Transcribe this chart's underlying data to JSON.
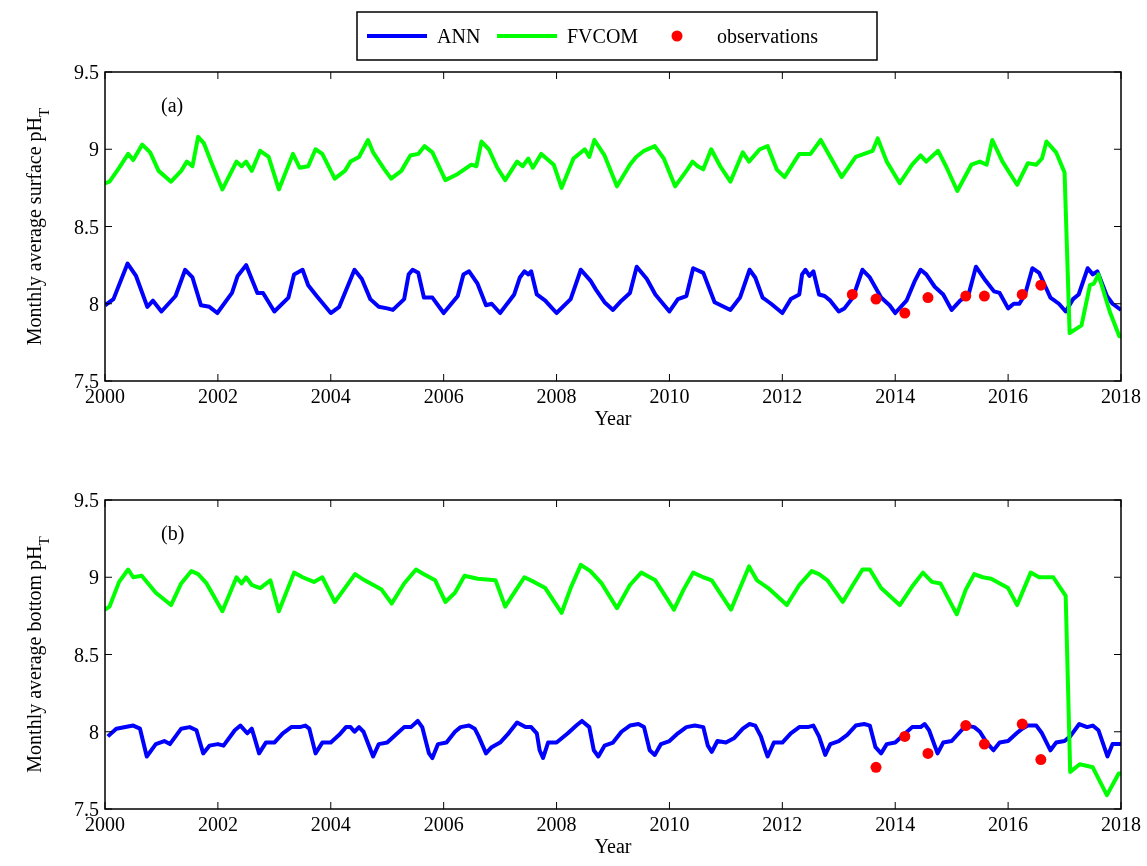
{
  "chart_data": [
    {
      "type": "line",
      "xlabel": "Year",
      "ylabel": "Monthly average surface pH$_{T}$",
      "annotations": [
        "(a)"
      ],
      "xlim": [
        2000,
        2018
      ],
      "xticks": [
        2000,
        2002,
        2004,
        2006,
        2008,
        2010,
        2012,
        2014,
        2016,
        2018
      ],
      "ylim": [
        7.5,
        9.5
      ],
      "yticks": [
        7.5,
        8,
        8.5,
        9,
        9.5
      ],
      "grid": false,
      "legend": "top",
      "marker": "none",
      "line_style": "solid",
      "series": [
        {
          "name": "ANN",
          "color": "#0000ff",
          "x": [
            2000.0,
            2000.15,
            2000.4,
            2000.55,
            2000.75,
            2000.85,
            2001.0,
            2001.25,
            2001.42,
            2001.55,
            2001.7,
            2001.85,
            2001.99,
            2002.25,
            2002.35,
            2002.5,
            2002.7,
            2002.8,
            2003.0,
            2003.25,
            2003.35,
            2003.5,
            2003.6,
            2003.75,
            2004.0,
            2004.15,
            2004.42,
            2004.55,
            2004.7,
            2004.85,
            2005.0,
            2005.1,
            2005.3,
            2005.38,
            2005.45,
            2005.55,
            2005.65,
            2005.8,
            2006.0,
            2006.25,
            2006.35,
            2006.45,
            2006.6,
            2006.75,
            2006.85,
            2007.0,
            2007.25,
            2007.35,
            2007.43,
            2007.5,
            2007.55,
            2007.65,
            2007.8,
            2007.9,
            2008.0,
            2008.25,
            2008.43,
            2008.6,
            2008.7,
            2008.85,
            2009.0,
            2009.15,
            2009.3,
            2009.42,
            2009.6,
            2009.75,
            2010.0,
            2010.15,
            2010.3,
            2010.42,
            2010.6,
            2010.8,
            2011.08,
            2011.25,
            2011.42,
            2011.52,
            2011.65,
            2011.8,
            2012.0,
            2012.15,
            2012.3,
            2012.35,
            2012.41,
            2012.48,
            2012.55,
            2012.65,
            2012.75,
            2012.85,
            2013.0,
            2013.1,
            2013.25,
            2013.42,
            2013.55,
            2013.75,
            2013.9,
            2014.0,
            2014.2,
            2014.35,
            2014.45,
            2014.55,
            2014.7,
            2014.85,
            2015.0,
            2015.15,
            2015.3,
            2015.43,
            2015.6,
            2015.75,
            2015.85,
            2016.0,
            2016.1,
            2016.2,
            2016.3,
            2016.43,
            2016.55,
            2016.65,
            2016.75,
            2016.9,
            2017.02,
            2017.15,
            2017.25,
            2017.41,
            2017.5,
            2017.58,
            2017.75,
            2017.85,
            2018.0
          ],
          "values": [
            7.99,
            8.03,
            8.26,
            8.18,
            7.98,
            8.02,
            7.95,
            8.05,
            8.22,
            8.17,
            7.99,
            7.98,
            7.94,
            8.07,
            8.18,
            8.25,
            8.07,
            8.07,
            7.95,
            8.04,
            8.19,
            8.22,
            8.12,
            8.05,
            7.94,
            7.98,
            8.22,
            8.16,
            8.03,
            7.98,
            7.97,
            7.96,
            8.03,
            8.19,
            8.22,
            8.2,
            8.04,
            8.04,
            7.94,
            8.05,
            8.19,
            8.21,
            8.13,
            7.99,
            8.0,
            7.94,
            8.06,
            8.17,
            8.21,
            8.19,
            8.21,
            8.06,
            8.02,
            7.98,
            7.94,
            8.03,
            8.22,
            8.15,
            8.09,
            8.01,
            7.96,
            8.02,
            8.07,
            8.24,
            8.16,
            8.06,
            7.95,
            8.03,
            8.05,
            8.23,
            8.2,
            8.01,
            7.96,
            8.04,
            8.22,
            8.17,
            8.04,
            8.0,
            7.94,
            8.03,
            8.06,
            8.19,
            8.22,
            8.18,
            8.21,
            8.06,
            8.05,
            8.02,
            7.95,
            7.97,
            8.04,
            8.22,
            8.17,
            8.04,
            7.99,
            7.94,
            8.02,
            8.15,
            8.22,
            8.19,
            8.11,
            8.06,
            7.96,
            8.02,
            8.06,
            8.24,
            8.15,
            8.08,
            8.07,
            7.97,
            8.0,
            8.0,
            8.06,
            8.23,
            8.2,
            8.12,
            8.04,
            8.0,
            7.95,
            8.03,
            8.06,
            8.23,
            8.19,
            8.21,
            8.05,
            8.0,
            7.96
          ]
        },
        {
          "name": "FVCOM",
          "color": "#00ff00",
          "x": [
            2000.0,
            2000.08,
            2000.25,
            2000.41,
            2000.5,
            2000.66,
            2000.8,
            2000.95,
            2001.17,
            2001.35,
            2001.45,
            2001.55,
            2001.65,
            2001.75,
            2001.9,
            2002.08,
            2002.33,
            2002.42,
            2002.5,
            2002.6,
            2002.75,
            2002.9,
            2003.08,
            2003.33,
            2003.45,
            2003.6,
            2003.73,
            2003.85,
            2004.07,
            2004.25,
            2004.35,
            2004.5,
            2004.66,
            2004.75,
            2004.95,
            2005.07,
            2005.25,
            2005.41,
            2005.55,
            2005.66,
            2005.8,
            2006.03,
            2006.25,
            2006.49,
            2006.58,
            2006.67,
            2006.8,
            2006.95,
            2007.09,
            2007.3,
            2007.4,
            2007.5,
            2007.58,
            2007.73,
            2007.95,
            2008.09,
            2008.3,
            2008.5,
            2008.58,
            2008.67,
            2008.85,
            2009.07,
            2009.3,
            2009.41,
            2009.55,
            2009.74,
            2009.9,
            2010.1,
            2010.3,
            2010.41,
            2010.5,
            2010.6,
            2010.74,
            2010.9,
            2011.08,
            2011.3,
            2011.41,
            2011.6,
            2011.74,
            2011.9,
            2012.04,
            2012.3,
            2012.5,
            2012.6,
            2012.68,
            2012.85,
            2013.05,
            2013.3,
            2013.45,
            2013.6,
            2013.69,
            2013.85,
            2014.08,
            2014.3,
            2014.45,
            2014.55,
            2014.76,
            2014.9,
            2015.1,
            2015.35,
            2015.5,
            2015.62,
            2015.72,
            2015.9,
            2016.16,
            2016.35,
            2016.5,
            2016.6,
            2016.68,
            2016.85,
            2017.0,
            2017.09,
            2017.3,
            2017.45,
            2017.52,
            2017.6,
            2017.8,
            2017.97,
            2018.0
          ],
          "values": [
            8.78,
            8.79,
            8.88,
            8.97,
            8.93,
            9.03,
            8.98,
            8.86,
            8.79,
            8.86,
            8.92,
            8.89,
            9.08,
            9.04,
            8.9,
            8.74,
            8.92,
            8.89,
            8.92,
            8.86,
            8.99,
            8.95,
            8.74,
            8.97,
            8.88,
            8.89,
            9.0,
            8.97,
            8.81,
            8.86,
            8.92,
            8.95,
            9.06,
            8.98,
            8.87,
            8.81,
            8.86,
            8.96,
            8.97,
            9.02,
            8.98,
            8.8,
            8.84,
            8.9,
            8.89,
            9.05,
            9.0,
            8.88,
            8.8,
            8.92,
            8.89,
            8.94,
            8.88,
            8.97,
            8.9,
            8.75,
            8.94,
            9.0,
            8.95,
            9.06,
            8.96,
            8.76,
            8.9,
            8.95,
            8.99,
            9.02,
            8.94,
            8.76,
            8.86,
            8.92,
            8.89,
            8.87,
            9.0,
            8.89,
            8.79,
            8.98,
            8.92,
            9.0,
            9.02,
            8.87,
            8.82,
            8.97,
            8.97,
            9.02,
            9.06,
            8.95,
            8.82,
            8.95,
            8.97,
            8.99,
            9.07,
            8.92,
            8.78,
            8.9,
            8.96,
            8.92,
            8.99,
            8.89,
            8.73,
            8.9,
            8.92,
            8.9,
            9.06,
            8.92,
            8.77,
            8.91,
            8.9,
            8.94,
            9.05,
            8.98,
            8.85,
            7.81,
            7.86,
            8.12,
            8.13,
            8.19,
            7.95,
            7.79,
            7.79
          ]
        },
        {
          "name": "observations",
          "type": "scatter",
          "color": "#ff0000",
          "marker": "circle",
          "x": [
            2013.24,
            2013.66,
            2014.17,
            2014.58,
            2015.25,
            2015.58,
            2016.25,
            2016.58
          ],
          "values": [
            8.06,
            8.03,
            7.94,
            8.04,
            8.05,
            8.05,
            8.06,
            8.12
          ]
        }
      ]
    },
    {
      "type": "line",
      "xlabel": "Year",
      "ylabel": "Monthly average bottom pH$_{T}$",
      "annotations": [
        "(b)"
      ],
      "xlim": [
        2000,
        2018
      ],
      "xticks": [
        2000,
        2002,
        2004,
        2006,
        2008,
        2010,
        2012,
        2014,
        2016,
        2018
      ],
      "ylim": [
        7.5,
        9.5
      ],
      "yticks": [
        7.5,
        8,
        8.5,
        9,
        9.5
      ],
      "grid": false,
      "marker": "none",
      "line_style": "solid",
      "series": [
        {
          "color": "#0000ff",
          "x": [
            2000.05,
            2000.2,
            2000.5,
            2000.62,
            2000.74,
            2000.9,
            2001.05,
            2001.15,
            2001.35,
            2001.5,
            2001.62,
            2001.74,
            2001.85,
            2002.0,
            2002.1,
            2002.3,
            2002.4,
            2002.52,
            2002.6,
            2002.65,
            2002.73,
            2002.85,
            2003.0,
            2003.15,
            2003.3,
            2003.45,
            2003.55,
            2003.62,
            2003.73,
            2003.85,
            2004.0,
            2004.15,
            2004.27,
            2004.35,
            2004.42,
            2004.5,
            2004.58,
            2004.75,
            2004.85,
            2005.0,
            2005.15,
            2005.3,
            2005.42,
            2005.54,
            2005.62,
            2005.74,
            2005.8,
            2005.9,
            2006.05,
            2006.2,
            2006.3,
            2006.45,
            2006.55,
            2006.62,
            2006.75,
            2006.85,
            2007.0,
            2007.15,
            2007.3,
            2007.45,
            2007.55,
            2007.65,
            2007.7,
            2007.76,
            2007.85,
            2008.0,
            2008.2,
            2008.35,
            2008.45,
            2008.58,
            2008.66,
            2008.74,
            2008.85,
            2009.0,
            2009.15,
            2009.3,
            2009.45,
            2009.55,
            2009.65,
            2009.74,
            2009.85,
            2010.0,
            2010.15,
            2010.3,
            2010.45,
            2010.6,
            2010.68,
            2010.75,
            2010.85,
            2011.0,
            2011.15,
            2011.3,
            2011.42,
            2011.52,
            2011.62,
            2011.7,
            2011.74,
            2011.85,
            2012.0,
            2012.15,
            2012.3,
            2012.45,
            2012.55,
            2012.65,
            2012.76,
            2012.85,
            2013.0,
            2013.15,
            2013.3,
            2013.45,
            2013.55,
            2013.65,
            2013.75,
            2013.85,
            2014.0,
            2014.15,
            2014.3,
            2014.45,
            2014.52,
            2014.6,
            2014.75,
            2014.85,
            2015.0,
            2015.15,
            2015.25,
            2015.4,
            2015.5,
            2015.62,
            2015.74,
            2015.85,
            2016.0,
            2016.15,
            2016.25,
            2016.35,
            2016.5,
            2016.6,
            2016.75,
            2016.85,
            2017.0,
            2017.1,
            2017.26,
            2017.4,
            2017.5,
            2017.6,
            2017.76,
            2017.85,
            2018.0
          ],
          "values": [
            7.97,
            8.02,
            8.04,
            8.02,
            7.84,
            7.92,
            7.94,
            7.92,
            8.02,
            8.03,
            8.01,
            7.86,
            7.91,
            7.92,
            7.91,
            8.01,
            8.04,
            7.99,
            8.02,
            7.96,
            7.86,
            7.93,
            7.93,
            7.99,
            8.03,
            8.03,
            8.04,
            8.02,
            7.86,
            7.93,
            7.93,
            7.98,
            8.03,
            8.03,
            8.0,
            8.03,
            8.0,
            7.84,
            7.92,
            7.93,
            7.98,
            8.03,
            8.03,
            8.07,
            8.03,
            7.86,
            7.83,
            7.92,
            7.93,
            8.0,
            8.03,
            8.04,
            8.02,
            7.97,
            7.86,
            7.9,
            7.93,
            7.99,
            8.06,
            8.03,
            8.03,
            7.99,
            7.88,
            7.83,
            7.93,
            7.93,
            7.99,
            8.04,
            8.07,
            8.03,
            7.88,
            7.84,
            7.91,
            7.93,
            8.0,
            8.04,
            8.05,
            8.03,
            7.88,
            7.85,
            7.92,
            7.94,
            7.99,
            8.03,
            8.04,
            8.03,
            7.91,
            7.87,
            7.94,
            7.93,
            7.96,
            8.02,
            8.05,
            8.04,
            7.97,
            7.88,
            7.84,
            7.93,
            7.93,
            7.99,
            8.03,
            8.03,
            8.04,
            7.97,
            7.85,
            7.92,
            7.94,
            7.98,
            8.04,
            8.05,
            8.04,
            7.9,
            7.86,
            7.92,
            7.93,
            7.98,
            8.03,
            8.03,
            8.05,
            8.01,
            7.86,
            7.93,
            7.94,
            8.0,
            8.04,
            8.03,
            8.0,
            7.93,
            7.88,
            7.93,
            7.94,
            7.99,
            8.02,
            8.04,
            8.04,
            7.99,
            7.88,
            7.93,
            7.94,
            7.97,
            8.05,
            8.03,
            8.04,
            8.01,
            7.84,
            7.92,
            7.92
          ]
        },
        {
          "color": "#00ff00",
          "x": [
            2000.0,
            2000.08,
            2000.25,
            2000.41,
            2000.5,
            2000.65,
            2000.9,
            2001.17,
            2001.35,
            2001.53,
            2001.65,
            2001.8,
            2002.08,
            2002.33,
            2002.42,
            2002.5,
            2002.6,
            2002.75,
            2002.93,
            2003.08,
            2003.35,
            2003.5,
            2003.7,
            2003.85,
            2004.07,
            2004.25,
            2004.43,
            2004.6,
            2004.9,
            2005.08,
            2005.3,
            2005.51,
            2005.65,
            2005.85,
            2006.03,
            2006.2,
            2006.37,
            2006.6,
            2006.92,
            2007.09,
            2007.25,
            2007.43,
            2007.6,
            2007.8,
            2008.09,
            2008.25,
            2008.43,
            2008.6,
            2008.8,
            2009.07,
            2009.3,
            2009.5,
            2009.75,
            2010.08,
            2010.25,
            2010.42,
            2010.6,
            2010.75,
            2011.09,
            2011.25,
            2011.41,
            2011.55,
            2011.75,
            2012.08,
            2012.3,
            2012.52,
            2012.65,
            2012.8,
            2013.07,
            2013.25,
            2013.42,
            2013.55,
            2013.75,
            2014.08,
            2014.3,
            2014.49,
            2014.65,
            2014.8,
            2015.09,
            2015.25,
            2015.4,
            2015.55,
            2015.7,
            2016.0,
            2016.16,
            2016.4,
            2016.55,
            2016.8,
            2017.02,
            2017.1,
            2017.27,
            2017.5,
            2017.75,
            2017.96,
            2018.0
          ],
          "values": [
            8.79,
            8.81,
            8.97,
            9.05,
            9.0,
            9.01,
            8.9,
            8.82,
            8.96,
            9.04,
            9.02,
            8.96,
            8.78,
            9.0,
            8.96,
            9.0,
            8.95,
            8.93,
            8.98,
            8.78,
            9.03,
            9.0,
            8.97,
            9.0,
            8.84,
            8.93,
            9.02,
            8.98,
            8.92,
            8.83,
            8.96,
            9.05,
            9.02,
            8.98,
            8.84,
            8.9,
            9.01,
            8.99,
            8.98,
            8.81,
            8.9,
            9.0,
            8.97,
            8.93,
            8.77,
            8.93,
            9.08,
            9.04,
            8.96,
            8.8,
            8.95,
            9.03,
            8.98,
            8.79,
            8.92,
            9.03,
            9.0,
            8.98,
            8.79,
            8.93,
            9.07,
            8.98,
            8.93,
            8.82,
            8.95,
            9.04,
            9.02,
            8.98,
            8.84,
            8.95,
            9.05,
            9.05,
            8.93,
            8.82,
            8.94,
            9.03,
            8.97,
            8.96,
            8.76,
            8.92,
            9.02,
            9.0,
            8.99,
            8.93,
            8.82,
            9.03,
            9.0,
            9.0,
            8.88,
            7.74,
            7.79,
            7.77,
            7.59,
            7.73,
            7.73
          ]
        },
        {
          "type": "scatter",
          "color": "#ff0000",
          "marker": "circle",
          "x": [
            2013.66,
            2014.17,
            2014.58,
            2015.25,
            2015.58,
            2016.25,
            2016.58
          ],
          "values": [
            7.77,
            7.97,
            7.86,
            8.04,
            7.92,
            8.05,
            7.82
          ]
        }
      ]
    }
  ]
}
